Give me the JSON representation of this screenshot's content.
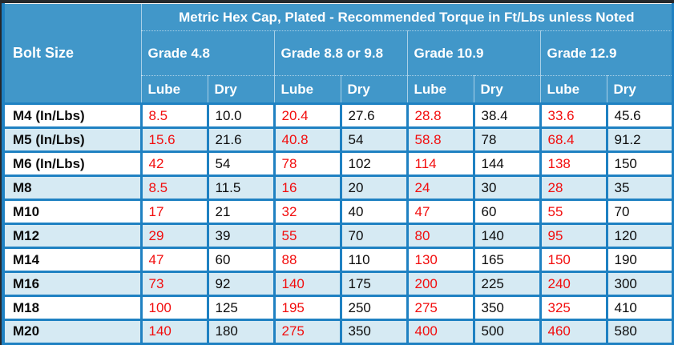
{
  "colors": {
    "header_bg": "#4197c9",
    "grid_border": "#1f81c2",
    "row_stripe": "#d6eaf3",
    "row_white": "#ffffff",
    "lube_text": "#f20d0d",
    "dry_text": "#0c0c0c",
    "outer_frame": "#26282b",
    "header_text": "#ffffff"
  },
  "chart_data": {
    "type": "table",
    "title": "Metric Hex Cap, Plated - Recommended Torque in Ft/Lbs unless Noted",
    "row_header": "Bolt Size",
    "groups": [
      {
        "label": "Grade 4.8",
        "sub": [
          "Lube",
          "Dry"
        ]
      },
      {
        "label": "Grade 8.8 or 9.8",
        "sub": [
          "Lube",
          "Dry"
        ]
      },
      {
        "label": "Grade 10.9",
        "sub": [
          "Lube",
          "Dry"
        ]
      },
      {
        "label": "Grade 12.9",
        "sub": [
          "Lube",
          "Dry"
        ]
      }
    ],
    "rows": [
      {
        "bolt": "M4 (In/Lbs)",
        "values": [
          "8.5",
          "10.0",
          "20.4",
          "27.6",
          "28.8",
          "38.4",
          "33.6",
          "45.6"
        ]
      },
      {
        "bolt": "M5 (In/Lbs)",
        "values": [
          "15.6",
          "21.6",
          "40.8",
          "54",
          "58.8",
          "78",
          "68.4",
          "91.2"
        ]
      },
      {
        "bolt": "M6 (In/Lbs)",
        "values": [
          "42",
          "54",
          "78",
          "102",
          "114",
          "144",
          "138",
          "150"
        ]
      },
      {
        "bolt": "M8",
        "values": [
          "8.5",
          "11.5",
          "16",
          "20",
          "24",
          "30",
          "28",
          "35"
        ]
      },
      {
        "bolt": "M10",
        "values": [
          "17",
          "21",
          "32",
          "40",
          "47",
          "60",
          "55",
          "70"
        ]
      },
      {
        "bolt": "M12",
        "values": [
          "29",
          "39",
          "55",
          "70",
          "80",
          "140",
          "95",
          "120"
        ]
      },
      {
        "bolt": "M14",
        "values": [
          "47",
          "60",
          "88",
          "110",
          "130",
          "165",
          "150",
          "190"
        ]
      },
      {
        "bolt": "M16",
        "values": [
          "73",
          "92",
          "140",
          "175",
          "200",
          "225",
          "240",
          "300"
        ]
      },
      {
        "bolt": "M18",
        "values": [
          "100",
          "125",
          "195",
          "250",
          "275",
          "350",
          "325",
          "410"
        ]
      },
      {
        "bolt": "M20",
        "values": [
          "140",
          "180",
          "275",
          "350",
          "400",
          "500",
          "460",
          "580"
        ]
      }
    ]
  }
}
